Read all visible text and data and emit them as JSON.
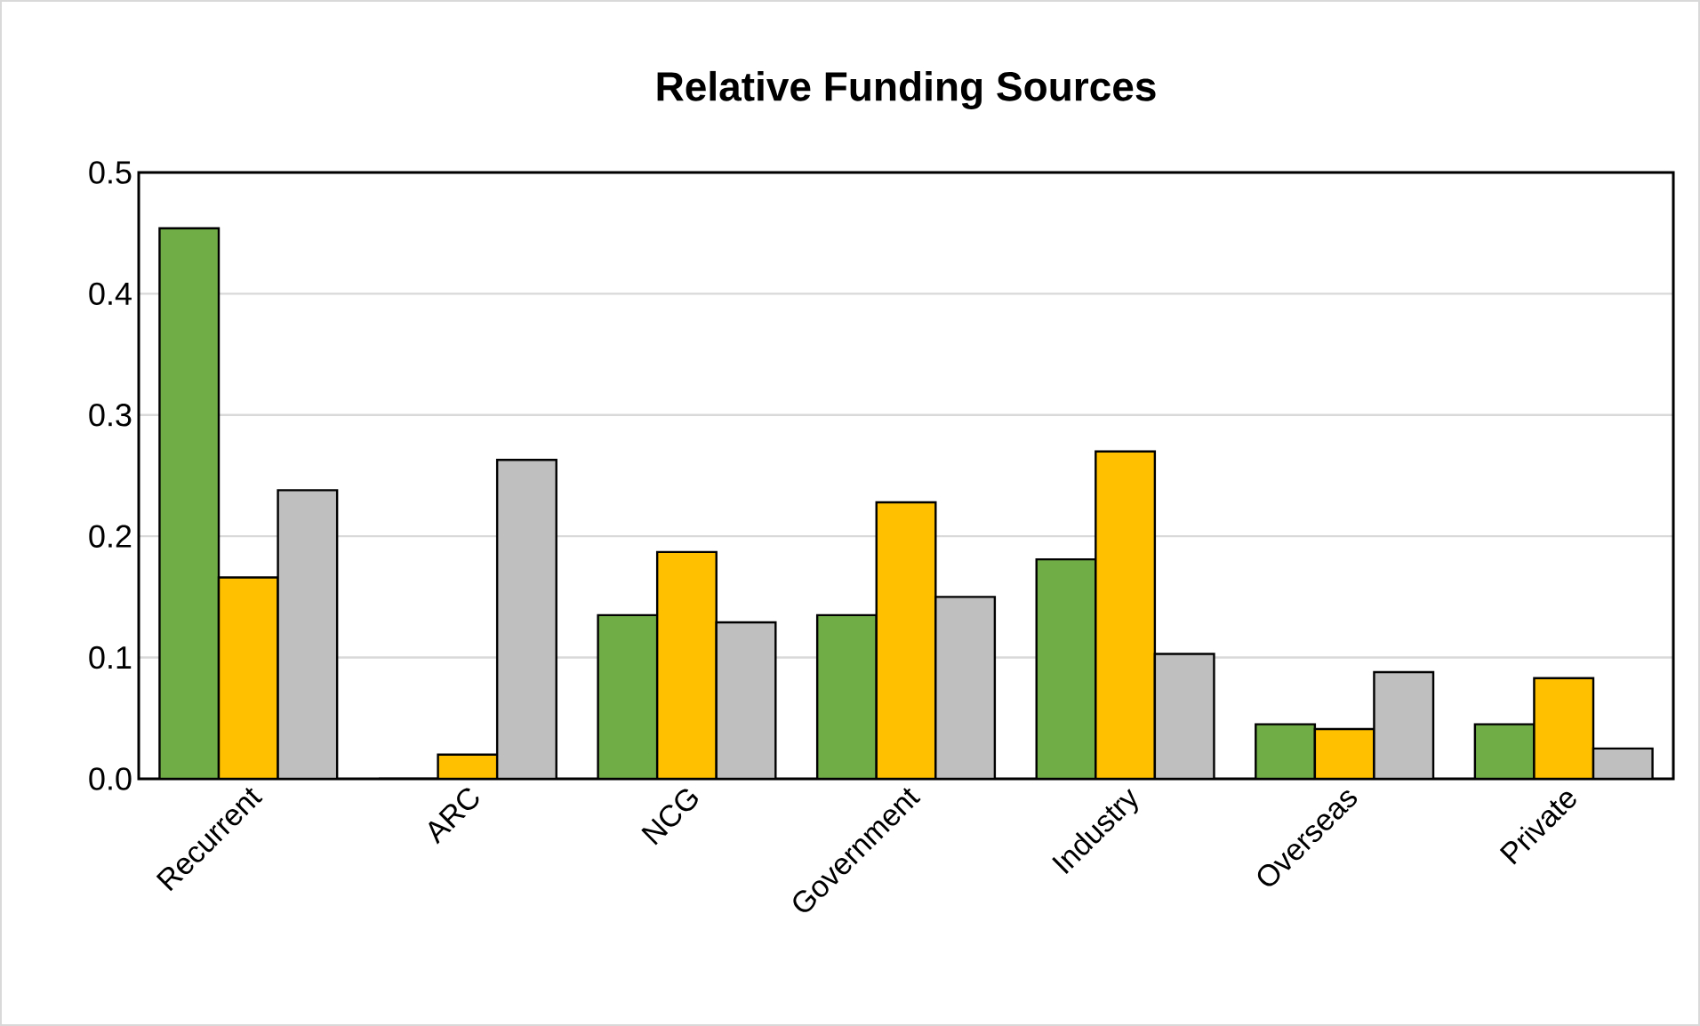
{
  "chart_data": {
    "type": "bar",
    "title": "Relative Funding Sources",
    "categories": [
      "Recurrent",
      "ARC",
      "NCG",
      "Government",
      "Industry",
      "Overseas",
      "Private"
    ],
    "series": [
      {
        "color": "#70ad47",
        "values": [
          0.454,
          0,
          0.135,
          0.135,
          0.181,
          0.045,
          0.045
        ]
      },
      {
        "color": "#ffc000",
        "values": [
          0.166,
          0.02,
          0.187,
          0.228,
          0.27,
          0.041,
          0.083
        ]
      },
      {
        "color": "#bfbfbf",
        "values": [
          0.238,
          0.263,
          0.129,
          0.15,
          0.103,
          0.088,
          0.025
        ]
      }
    ],
    "ylim": [
      0,
      0.5
    ],
    "yticks": [
      {
        "value": 0,
        "label": "0.0"
      },
      0.1,
      0.2,
      0.3,
      0.4,
      0.5
    ],
    "grid": "y"
  }
}
